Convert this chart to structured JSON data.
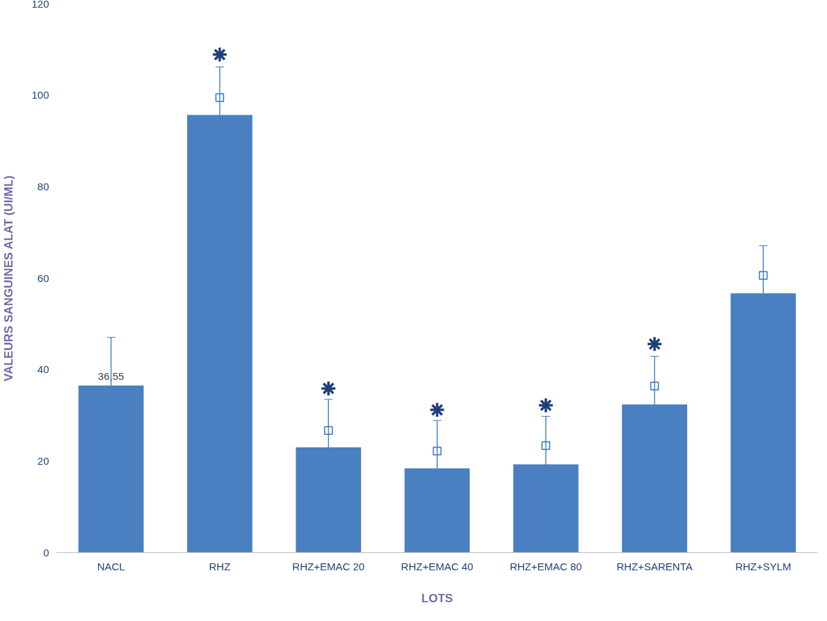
{
  "chart_data": {
    "type": "bar",
    "xlabel": "LOTS",
    "ylabel": "VALEURS SANGUINES ALAT (UI/ML)",
    "categories": [
      "NACL",
      "RHZ",
      "RHZ+EMAC 20",
      "RHZ+EMAC 40",
      "RHZ+EMAC 80",
      "RHZ+SARENTA",
      "RHZ+SYLM"
    ],
    "values": [
      36.55,
      95.7,
      23.0,
      18.4,
      19.3,
      32.4,
      56.7
    ],
    "errors": [
      10.5,
      10.5,
      10.5,
      10.5,
      10.5,
      10.5,
      10.4
    ],
    "value_labels": [
      "36,55",
      null,
      null,
      null,
      null,
      null,
      null
    ],
    "color": "#4a7fc1",
    "ylim": [
      0,
      120
    ],
    "yticks": [
      0,
      20,
      40,
      60,
      80,
      100,
      120
    ],
    "grid": false,
    "series": [
      {
        "type": "scatter",
        "marker": "square",
        "color": "#2e75c6",
        "x": [
          "RHZ",
          "RHZ+EMAC 20",
          "RHZ+EMAC 40",
          "RHZ+EMAC 80",
          "RHZ+SARENTA",
          "RHZ+SYLM"
        ],
        "values": [
          99.5,
          26.7,
          22.2,
          23.4,
          36.4,
          60.6
        ]
      },
      {
        "type": "scatter",
        "marker": "cross",
        "color": "#1f3f7a",
        "x": [
          "RHZ",
          "RHZ+EMAC 20",
          "RHZ+EMAC 40",
          "RHZ+EMAC 80",
          "RHZ+SARENTA"
        ],
        "values": [
          108.9,
          35.9,
          31.2,
          32.2,
          45.6
        ]
      }
    ]
  }
}
